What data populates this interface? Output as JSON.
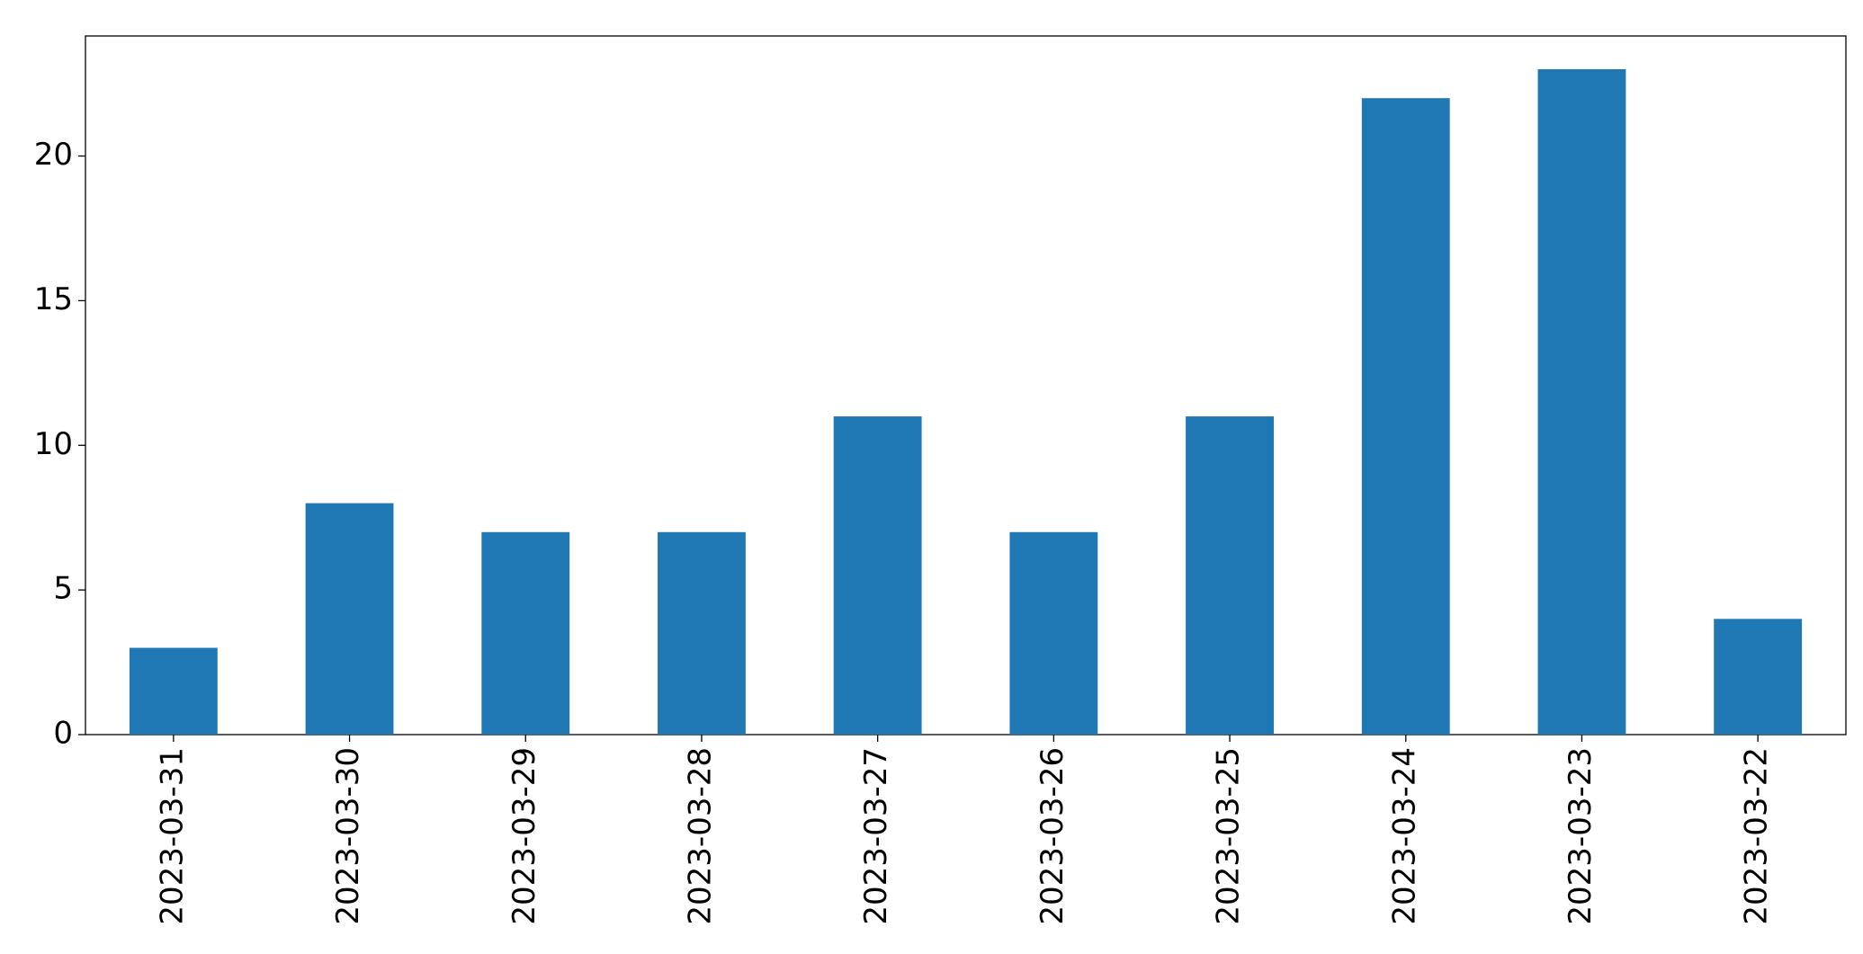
{
  "chart_data": {
    "type": "bar",
    "categories": [
      "2023-03-31",
      "2023-03-30",
      "2023-03-29",
      "2023-03-28",
      "2023-03-27",
      "2023-03-26",
      "2023-03-25",
      "2023-03-24",
      "2023-03-23",
      "2023-03-22"
    ],
    "values": [
      3,
      8,
      7,
      7,
      11,
      7,
      11,
      22,
      23,
      4
    ],
    "color": "#1f77b4",
    "ylim": [
      0,
      24.15
    ],
    "yticks": [
      0,
      5,
      10,
      15,
      20
    ],
    "grid": false
  }
}
